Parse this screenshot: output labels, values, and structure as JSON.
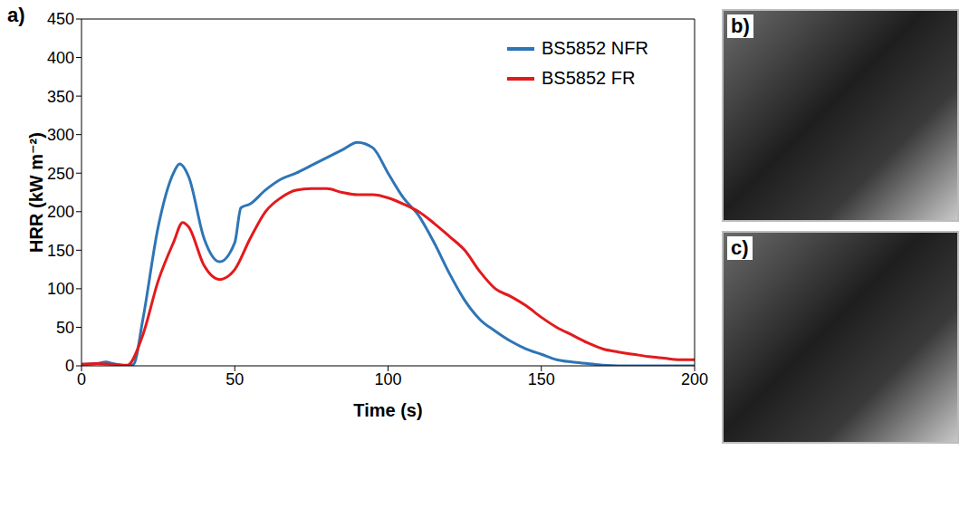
{
  "chart_data": {
    "type": "line",
    "panel_label": "a)",
    "x_label": "Time (s)",
    "y_label": "HRR (kW m⁻²)",
    "xlim": [
      0,
      200
    ],
    "xticks": [
      0,
      50,
      100,
      150,
      200
    ],
    "ylim": [
      0,
      450
    ],
    "yticks": [
      0,
      50,
      100,
      150,
      200,
      250,
      300,
      350,
      400,
      450
    ],
    "grid": false,
    "legend": "upper right",
    "series": [
      {
        "name": "BS5852 NFR",
        "color": "#2e75b6",
        "x": [
          0,
          5,
          8,
          10,
          15,
          17,
          20,
          25,
          30,
          32,
          35,
          40,
          45,
          50,
          52,
          55,
          60,
          65,
          70,
          75,
          80,
          85,
          90,
          95,
          100,
          105,
          110,
          115,
          120,
          125,
          130,
          135,
          140,
          145,
          150,
          155,
          160,
          165,
          170,
          180,
          190,
          200
        ],
        "values": [
          2,
          3,
          5,
          3,
          0,
          2,
          60,
          180,
          250,
          262,
          245,
          165,
          135,
          160,
          205,
          210,
          228,
          242,
          250,
          260,
          270,
          280,
          290,
          283,
          250,
          218,
          195,
          160,
          120,
          85,
          60,
          45,
          32,
          22,
          15,
          8,
          5,
          3,
          1,
          0,
          0,
          0
        ]
      },
      {
        "name": "BS5852 FR",
        "color": "#e31a1c",
        "x": [
          0,
          5,
          10,
          15,
          20,
          25,
          30,
          33,
          35,
          40,
          45,
          50,
          55,
          60,
          65,
          70,
          75,
          80,
          85,
          90,
          95,
          100,
          105,
          110,
          115,
          120,
          125,
          130,
          135,
          140,
          145,
          150,
          155,
          160,
          165,
          170,
          175,
          180,
          185,
          190,
          195,
          200
        ],
        "values": [
          2,
          3,
          2,
          1,
          40,
          110,
          160,
          186,
          180,
          130,
          112,
          125,
          165,
          200,
          218,
          228,
          230,
          230,
          225,
          222,
          222,
          218,
          210,
          200,
          185,
          168,
          150,
          122,
          100,
          90,
          78,
          63,
          50,
          40,
          30,
          22,
          18,
          15,
          12,
          10,
          8,
          8
        ]
      }
    ]
  },
  "images": [
    {
      "panel_label": "b)"
    },
    {
      "panel_label": "c)"
    }
  ]
}
